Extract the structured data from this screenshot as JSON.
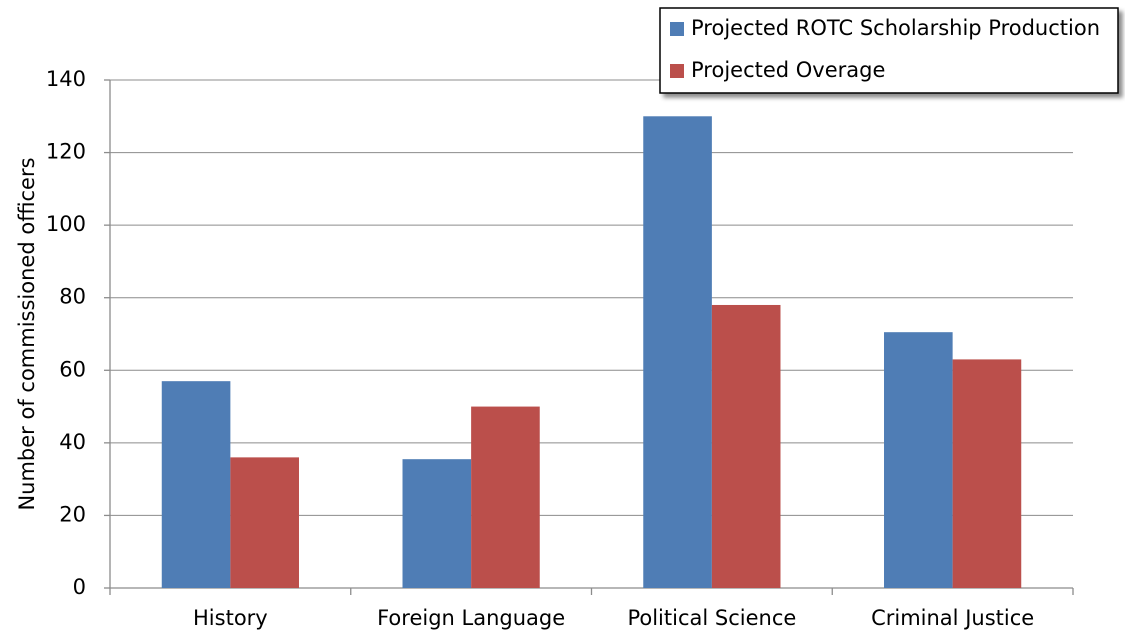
{
  "chart_data": {
    "type": "bar",
    "y_label": "Number of commissioned officers",
    "categories": [
      "History",
      "Foreign Language",
      "Political Science",
      "Criminal Justice"
    ],
    "series": [
      {
        "name": "Projected ROTC Scholarship Production",
        "color": "#4f7db5",
        "values": [
          57,
          35.5,
          130,
          70.5
        ]
      },
      {
        "name": "Projected Overage",
        "color": "#bb4f4b",
        "values": [
          36,
          50,
          78,
          63
        ]
      }
    ],
    "ylim": [
      0,
      140
    ],
    "yticks": [
      0,
      20,
      40,
      60,
      80,
      100,
      120,
      140
    ],
    "grid": true,
    "legend": "top-right"
  }
}
